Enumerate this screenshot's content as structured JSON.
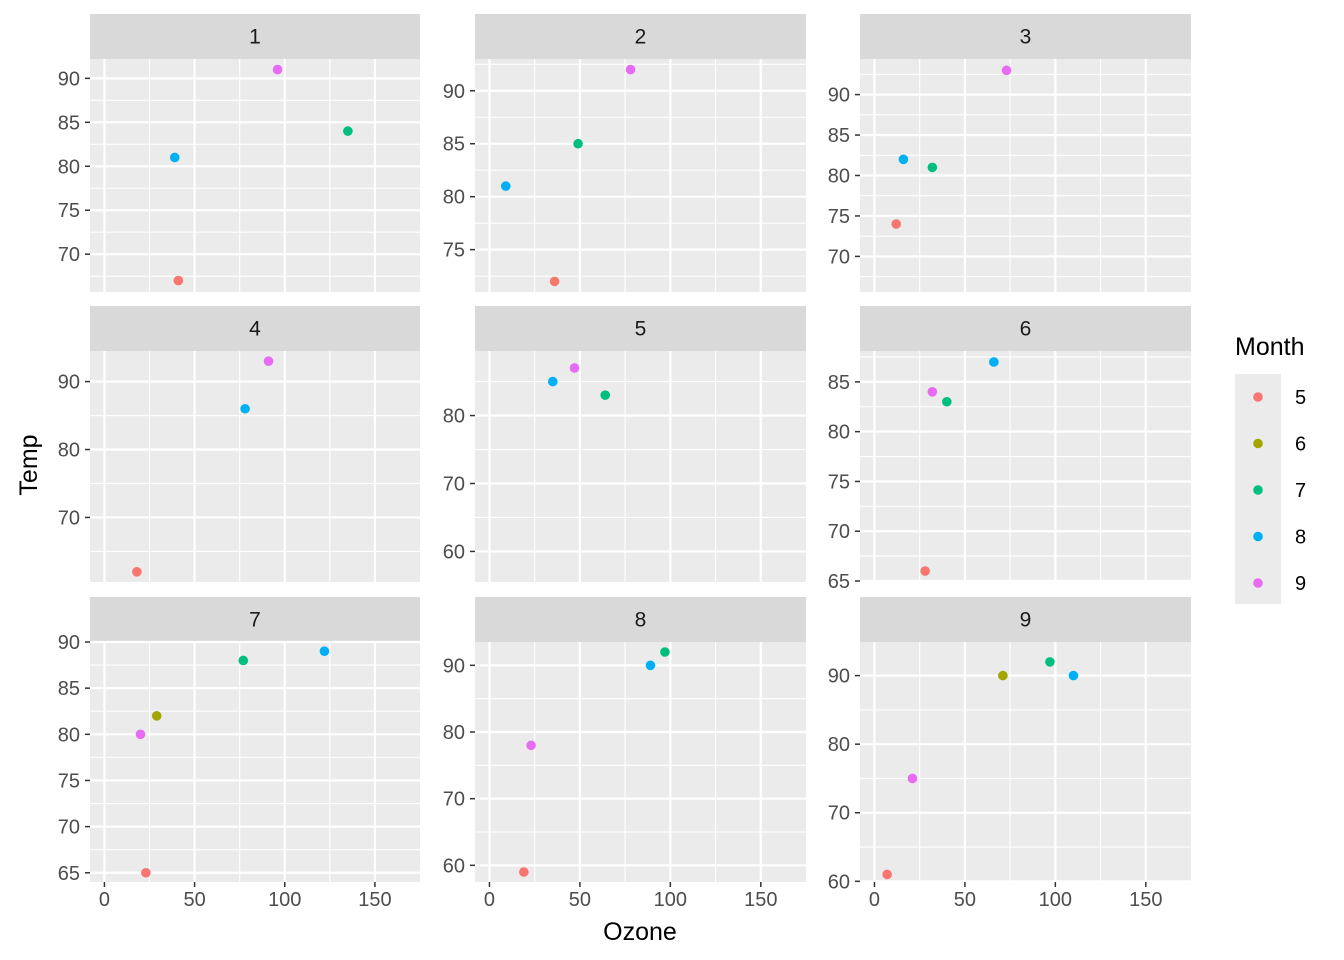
{
  "chart_data": {
    "type": "scatter",
    "facet_variable": "",
    "xlabel": "Ozone",
    "ylabel": "Temp",
    "xlim": [
      -8,
      175
    ],
    "x_ticks": [
      0,
      50,
      100,
      150
    ],
    "grid": true,
    "legend": {
      "title": "Month",
      "placement": "right",
      "entries": [
        {
          "label": "5",
          "color": "#F8766D"
        },
        {
          "label": "6",
          "color": "#A3A500"
        },
        {
          "label": "7",
          "color": "#00BF7D"
        },
        {
          "label": "8",
          "color": "#00B0F6"
        },
        {
          "label": "9",
          "color": "#E76BF3"
        }
      ]
    },
    "panels": [
      {
        "strip": "1",
        "ylim": [
          65.7,
          92.2
        ],
        "y_ticks": [
          70,
          75,
          80,
          85,
          90
        ],
        "points": [
          {
            "x": 41,
            "y": 67,
            "month": "5"
          },
          {
            "x": 135,
            "y": 84,
            "month": "7"
          },
          {
            "x": 39,
            "y": 81,
            "month": "8"
          },
          {
            "x": 96,
            "y": 91,
            "month": "9"
          }
        ]
      },
      {
        "strip": "2",
        "ylim": [
          71.0,
          93.0
        ],
        "y_ticks": [
          75,
          80,
          85,
          90
        ],
        "points": [
          {
            "x": 36,
            "y": 72,
            "month": "5"
          },
          {
            "x": 49,
            "y": 85,
            "month": "7"
          },
          {
            "x": 9,
            "y": 81,
            "month": "8"
          },
          {
            "x": 78,
            "y": 92,
            "month": "9"
          }
        ]
      },
      {
        "strip": "3",
        "ylim": [
          65.6,
          94.4
        ],
        "y_ticks": [
          70,
          75,
          80,
          85,
          90
        ],
        "points": [
          {
            "x": 12,
            "y": 74,
            "month": "5"
          },
          {
            "x": 32,
            "y": 81,
            "month": "7"
          },
          {
            "x": 16,
            "y": 82,
            "month": "8"
          },
          {
            "x": 73,
            "y": 93,
            "month": "9"
          }
        ]
      },
      {
        "strip": "4",
        "ylim": [
          60.5,
          94.5
        ],
        "y_ticks": [
          70,
          80,
          90
        ],
        "points": [
          {
            "x": 18,
            "y": 62,
            "month": "5"
          },
          {
            "x": 78,
            "y": 86,
            "month": "8"
          },
          {
            "x": 91,
            "y": 93,
            "month": "9"
          }
        ]
      },
      {
        "strip": "5",
        "ylim": [
          55.5,
          89.5
        ],
        "y_ticks": [
          60,
          70,
          80
        ],
        "points": [
          {
            "x": 64,
            "y": 83,
            "month": "7"
          },
          {
            "x": 35,
            "y": 85,
            "month": "8"
          },
          {
            "x": 47,
            "y": 87,
            "month": "9"
          }
        ]
      },
      {
        "strip": "6",
        "ylim": [
          64.9,
          88.1
        ],
        "y_ticks": [
          65,
          70,
          75,
          80,
          85
        ],
        "points": [
          {
            "x": 28,
            "y": 66,
            "month": "5"
          },
          {
            "x": 40,
            "y": 83,
            "month": "7"
          },
          {
            "x": 66,
            "y": 87,
            "month": "8"
          },
          {
            "x": 32,
            "y": 84,
            "month": "9"
          }
        ]
      },
      {
        "strip": "7",
        "ylim": [
          64.0,
          90.0
        ],
        "y_ticks": [
          65,
          70,
          75,
          80,
          85,
          90
        ],
        "points": [
          {
            "x": 23,
            "y": 65,
            "month": "5"
          },
          {
            "x": 29,
            "y": 82,
            "month": "6"
          },
          {
            "x": 77,
            "y": 88,
            "month": "7"
          },
          {
            "x": 122,
            "y": 89,
            "month": "8"
          },
          {
            "x": 20,
            "y": 80,
            "month": "9"
          }
        ]
      },
      {
        "strip": "8",
        "ylim": [
          57.5,
          93.5
        ],
        "y_ticks": [
          60,
          70,
          80,
          90
        ],
        "points": [
          {
            "x": 19,
            "y": 59,
            "month": "5"
          },
          {
            "x": 97,
            "y": 92,
            "month": "7"
          },
          {
            "x": 89,
            "y": 90,
            "month": "8"
          },
          {
            "x": 23,
            "y": 78,
            "month": "9"
          }
        ]
      },
      {
        "strip": "9",
        "ylim": [
          59.9,
          94.9
        ],
        "y_ticks": [
          60,
          70,
          80,
          90
        ],
        "points": [
          {
            "x": 7,
            "y": 61,
            "month": "5"
          },
          {
            "x": 71,
            "y": 90,
            "month": "6"
          },
          {
            "x": 97,
            "y": 92,
            "month": "7"
          },
          {
            "x": 110,
            "y": 90,
            "month": "8"
          },
          {
            "x": 21,
            "y": 75,
            "month": "9"
          }
        ]
      }
    ]
  }
}
